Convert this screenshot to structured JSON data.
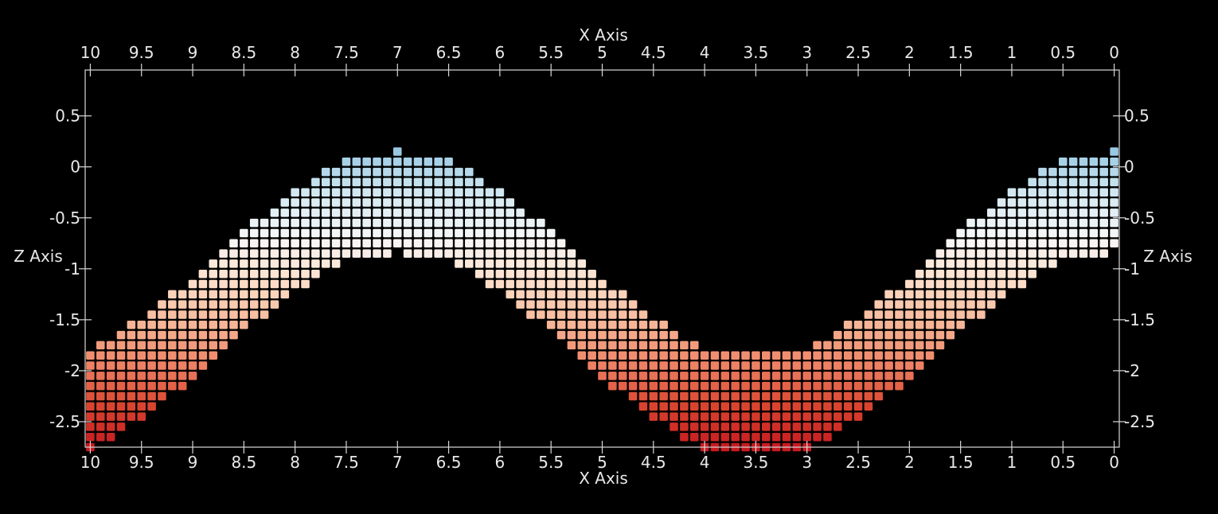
{
  "chart_data": {
    "type": "heatmap",
    "title": "",
    "xlabel": "X Axis",
    "ylabel": "Z Axis",
    "x_range": [
      10.05,
      -0.05
    ],
    "z_range": [
      -2.75,
      0.95
    ],
    "x_ticks": [
      "10",
      "9.5",
      "9",
      "8.5",
      "8",
      "7.5",
      "7",
      "6.5",
      "6",
      "5.5",
      "5",
      "4.5",
      "4",
      "3.5",
      "3",
      "2.5",
      "2",
      "1.5",
      "1",
      "0.5",
      "0"
    ],
    "z_ticks": [
      "0.5",
      "0",
      "-0.5",
      "-1",
      "-1.5",
      "-2",
      "-2.5"
    ],
    "cell_spacing_x": 0.1,
    "cell_spacing_z": 0.1,
    "surface": "cells fill the band between z = cos(2*pi*x/7) - 0.85 and z = cos(2*pi*x/7) - 1.85, with z quantized to steps of 0.1 and clipped to [-2.75, 0.95]",
    "colormap": "diverging blue-white-red by z (blue high, red low)",
    "colorscale": [
      "#2c6db4",
      "#5d9cd2",
      "#9ccbe4",
      "#d6eaf2",
      "#f7f7f7",
      "#fde0cc",
      "#f7b99a",
      "#ef8466",
      "#d9452f",
      "#c71a20"
    ],
    "background": "#000000",
    "grid": false
  }
}
